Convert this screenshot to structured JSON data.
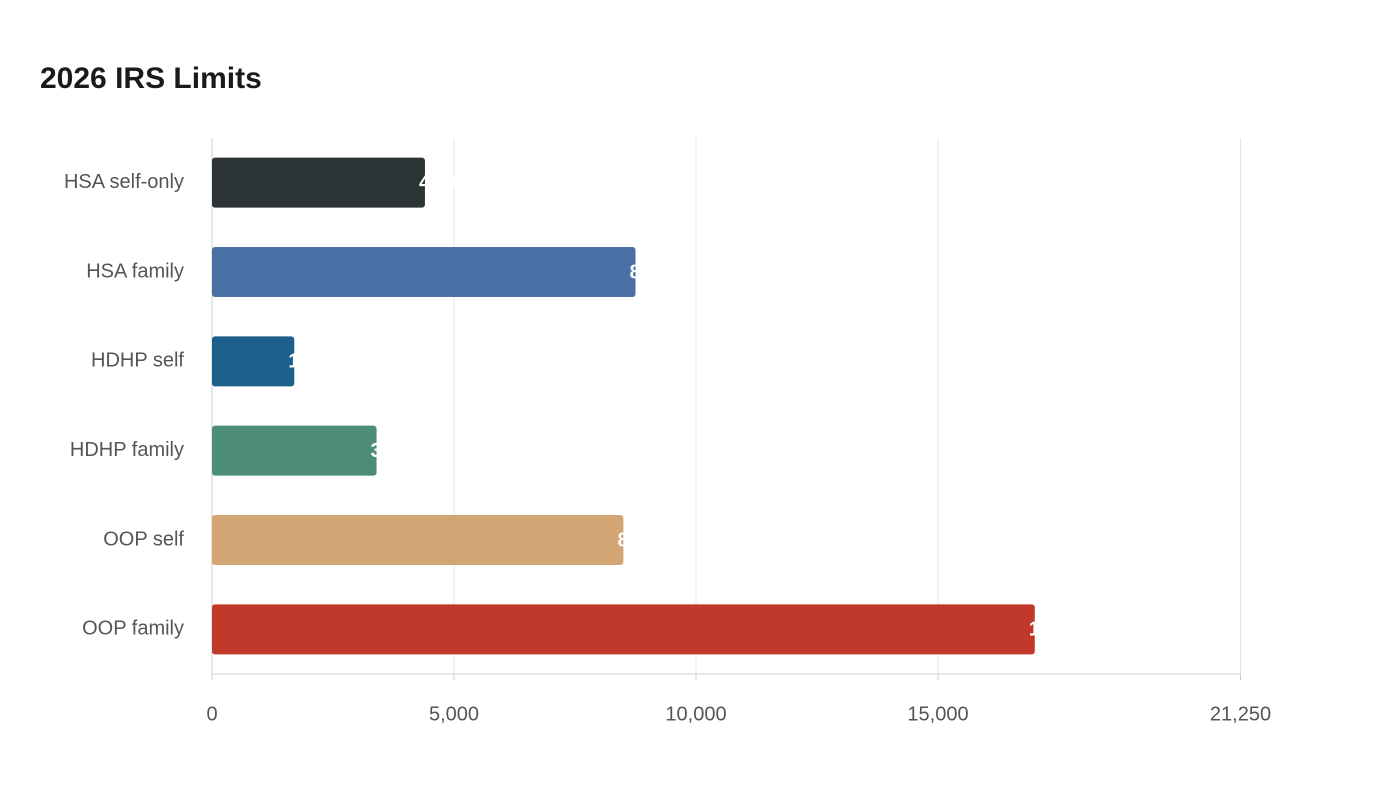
{
  "chart_data": {
    "type": "hbar",
    "title": "2026 IRS Limits",
    "categories": [
      "HSA self-only",
      "HSA family",
      "HDHP self",
      "HDHP family",
      "OOP self",
      "OOP family"
    ],
    "values": [
      4400,
      8750,
      1700,
      3400,
      8500,
      17000
    ],
    "colors": [
      "#2d3436",
      "#4a6fa5",
      "#1b5f8a",
      "#4e8c7a",
      "#d4a574",
      "#c0392b"
    ],
    "xlim": [
      0,
      21250
    ],
    "xticks": [
      0,
      {
        "value": 5000,
        "label": "5,000"
      },
      {
        "value": 10000,
        "label": "10,000"
      },
      {
        "value": 15000,
        "label": "15,000"
      },
      {
        "value": 21250,
        "label": "21,250"
      }
    ],
    "grid": true
  }
}
